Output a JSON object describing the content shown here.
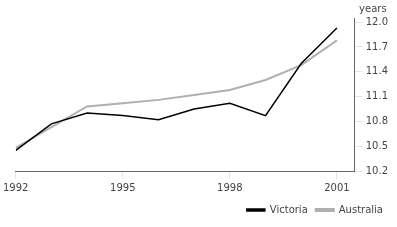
{
  "chart_data": {
    "type": "line",
    "ylabel": "years",
    "x": [
      1992,
      1993,
      1994,
      1995,
      1996,
      1997,
      1998,
      1999,
      2000,
      2001
    ],
    "series": [
      {
        "name": "Victoria",
        "color": "#000000",
        "values": [
          10.45,
          10.77,
          10.9,
          10.87,
          10.82,
          10.95,
          11.02,
          10.87,
          11.5,
          11.93
        ]
      },
      {
        "name": "Australia",
        "color": "#b0b0b0",
        "values": [
          10.48,
          10.73,
          10.98,
          11.02,
          11.06,
          11.12,
          11.18,
          11.3,
          11.48,
          11.78
        ]
      }
    ],
    "xlim": [
      1992,
      2001.5
    ],
    "xticks": [
      1992,
      1995,
      1998,
      2001
    ],
    "ylim": [
      10.2,
      12.05
    ],
    "yticks": [
      10.2,
      10.5,
      10.8,
      11.1,
      11.4,
      11.7,
      {
        "value": 12.0,
        "label": "12.0"
      }
    ],
    "grid": false,
    "legend": "lower right"
  }
}
